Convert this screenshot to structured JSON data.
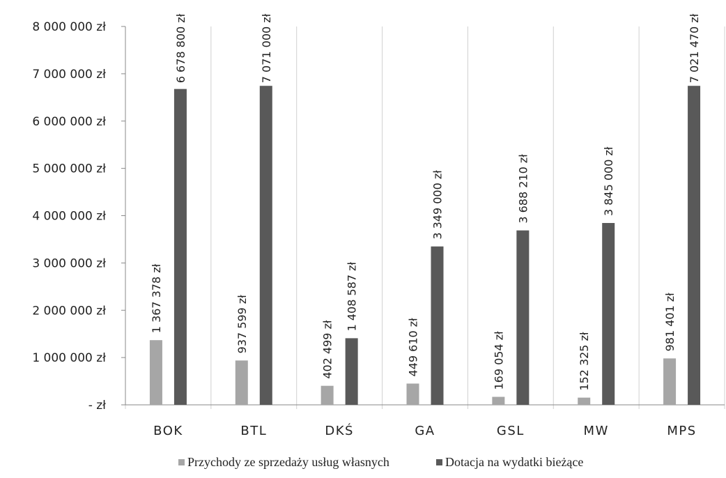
{
  "chart_data": {
    "type": "bar",
    "categories": [
      "BOK",
      "BTL",
      "DKŚ",
      "GA",
      "GSL",
      "MW",
      "MPS"
    ],
    "series": [
      {
        "name": "Przychody ze sprzedaży usług własnych",
        "color": "#a6a6a6",
        "values": [
          1367378,
          937599,
          402499,
          449610,
          169054,
          152325,
          981401
        ],
        "labels": [
          "1 367 378 zł",
          "937 599 zł",
          "402 499 zł",
          "449 610 zł",
          "169 054 zł",
          "152 325 zł",
          "981 401 zł"
        ]
      },
      {
        "name": "Dotacja na wydatki bieżące",
        "color": "#595959",
        "values": [
          6678800,
          7071000,
          1408587,
          3349000,
          3688210,
          3845000,
          7021470
        ],
        "labels": [
          "6 678 800 zł",
          "7 071 000 zł",
          "1 408 587 zł",
          "3 349 000 zł",
          "3 688 210 zł",
          "3 845 000 zł",
          "7 021 470 zł"
        ]
      }
    ],
    "ylim": [
      0,
      8000000
    ],
    "yticks": [
      0,
      1000000,
      2000000,
      3000000,
      4000000,
      5000000,
      6000000,
      7000000,
      8000000
    ],
    "ytick_labels": [
      "- zł",
      "1 000 000 zł",
      "2 000 000 zł",
      "3 000 000 zł",
      "4 000 000 zł",
      "5 000 000 zł",
      "6 000 000 zł",
      "7 000 000 zł",
      "8 000 000 zł"
    ],
    "grid": "vertical",
    "legend_position": "bottom"
  }
}
